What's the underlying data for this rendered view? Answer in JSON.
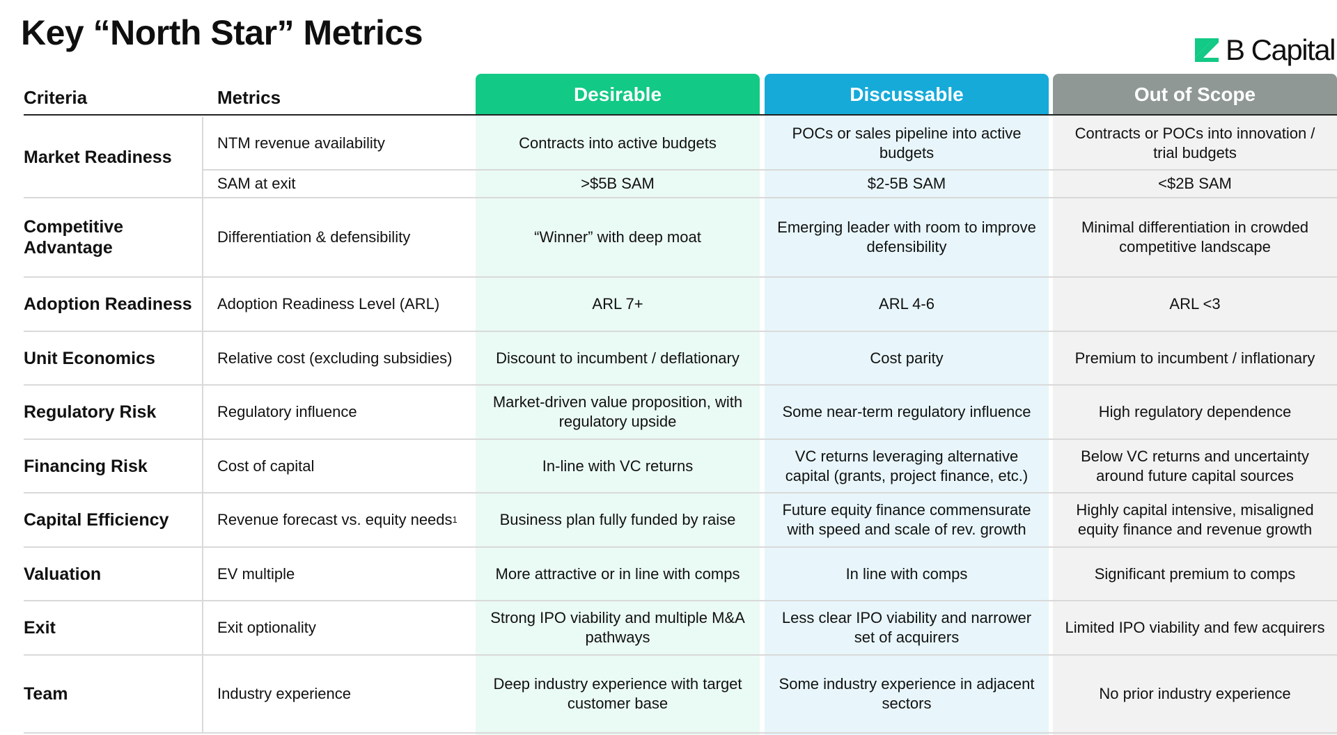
{
  "title": "Key “North Star” Metrics",
  "logo": {
    "text": "B Capital",
    "icon": "b-capital-logo-mark",
    "color": "#12c985"
  },
  "colors": {
    "desirable": "#12c985",
    "discussable": "#16aad9",
    "out_of_scope": "#8f9895"
  },
  "headers": {
    "criteria": "Criteria",
    "metrics": "Metrics",
    "desirable": "Desirable",
    "discussable": "Discussable",
    "out_of_scope": "Out of Scope"
  },
  "rows": [
    {
      "criteria": "Market Readiness",
      "metric": "NTM revenue availability",
      "desirable": "Contracts into active budgets",
      "discussable": "POCs or sales pipeline into active budgets",
      "out_of_scope": "Contracts or POCs into innovation / trial budgets"
    },
    {
      "criteria": "",
      "metric": "SAM at exit",
      "desirable": ">$5B SAM",
      "discussable": "$2-5B SAM",
      "out_of_scope": "<$2B SAM"
    },
    {
      "criteria": "Competitive Advantage",
      "metric": "Differentiation & defensibility",
      "desirable": "“Winner” with deep moat",
      "discussable": "Emerging leader with room to improve defensibility",
      "out_of_scope": "Minimal differentiation in crowded competitive landscape"
    },
    {
      "criteria": "Adoption Readiness",
      "metric": "Adoption Readiness Level (ARL)",
      "desirable": "ARL 7+",
      "discussable": "ARL 4-6",
      "out_of_scope": "ARL <3"
    },
    {
      "criteria": "Unit Economics",
      "metric": "Relative cost (excluding subsidies)",
      "desirable": "Discount to incumbent / deflationary",
      "discussable": "Cost parity",
      "out_of_scope": "Premium to incumbent / inflationary"
    },
    {
      "criteria": "Regulatory Risk",
      "metric": "Regulatory influence",
      "desirable": "Market-driven value proposition, with regulatory upside",
      "discussable": "Some near-term regulatory influence",
      "out_of_scope": "High regulatory dependence"
    },
    {
      "criteria": "Financing Risk",
      "metric": "Cost of capital",
      "desirable": "In-line with VC returns",
      "discussable": "VC returns leveraging alternative capital (grants, project finance, etc.)",
      "out_of_scope": "Below VC returns and uncertainty around future capital sources"
    },
    {
      "criteria": "Capital Efficiency",
      "metric": "Revenue forecast vs. equity needs",
      "metric_sup": "1",
      "desirable": "Business plan fully funded by raise",
      "discussable": "Future equity finance commensurate with speed and scale of rev. growth",
      "out_of_scope": "Highly capital intensive, misaligned equity finance and revenue growth"
    },
    {
      "criteria": "Valuation",
      "metric": "EV multiple",
      "desirable": "More attractive or in line with comps",
      "discussable": "In line with comps",
      "out_of_scope": "Significant premium to comps"
    },
    {
      "criteria": "Exit",
      "metric": "Exit optionality",
      "desirable": "Strong IPO viability and multiple M&A pathways",
      "discussable": "Less clear IPO viability and narrower set of acquirers",
      "out_of_scope": "Limited IPO viability and few acquirers"
    },
    {
      "criteria": "Team",
      "metric": "Industry experience",
      "desirable": "Deep industry experience with target customer base",
      "discussable": "Some industry experience in adjacent sectors",
      "out_of_scope": "No prior industry experience"
    }
  ]
}
